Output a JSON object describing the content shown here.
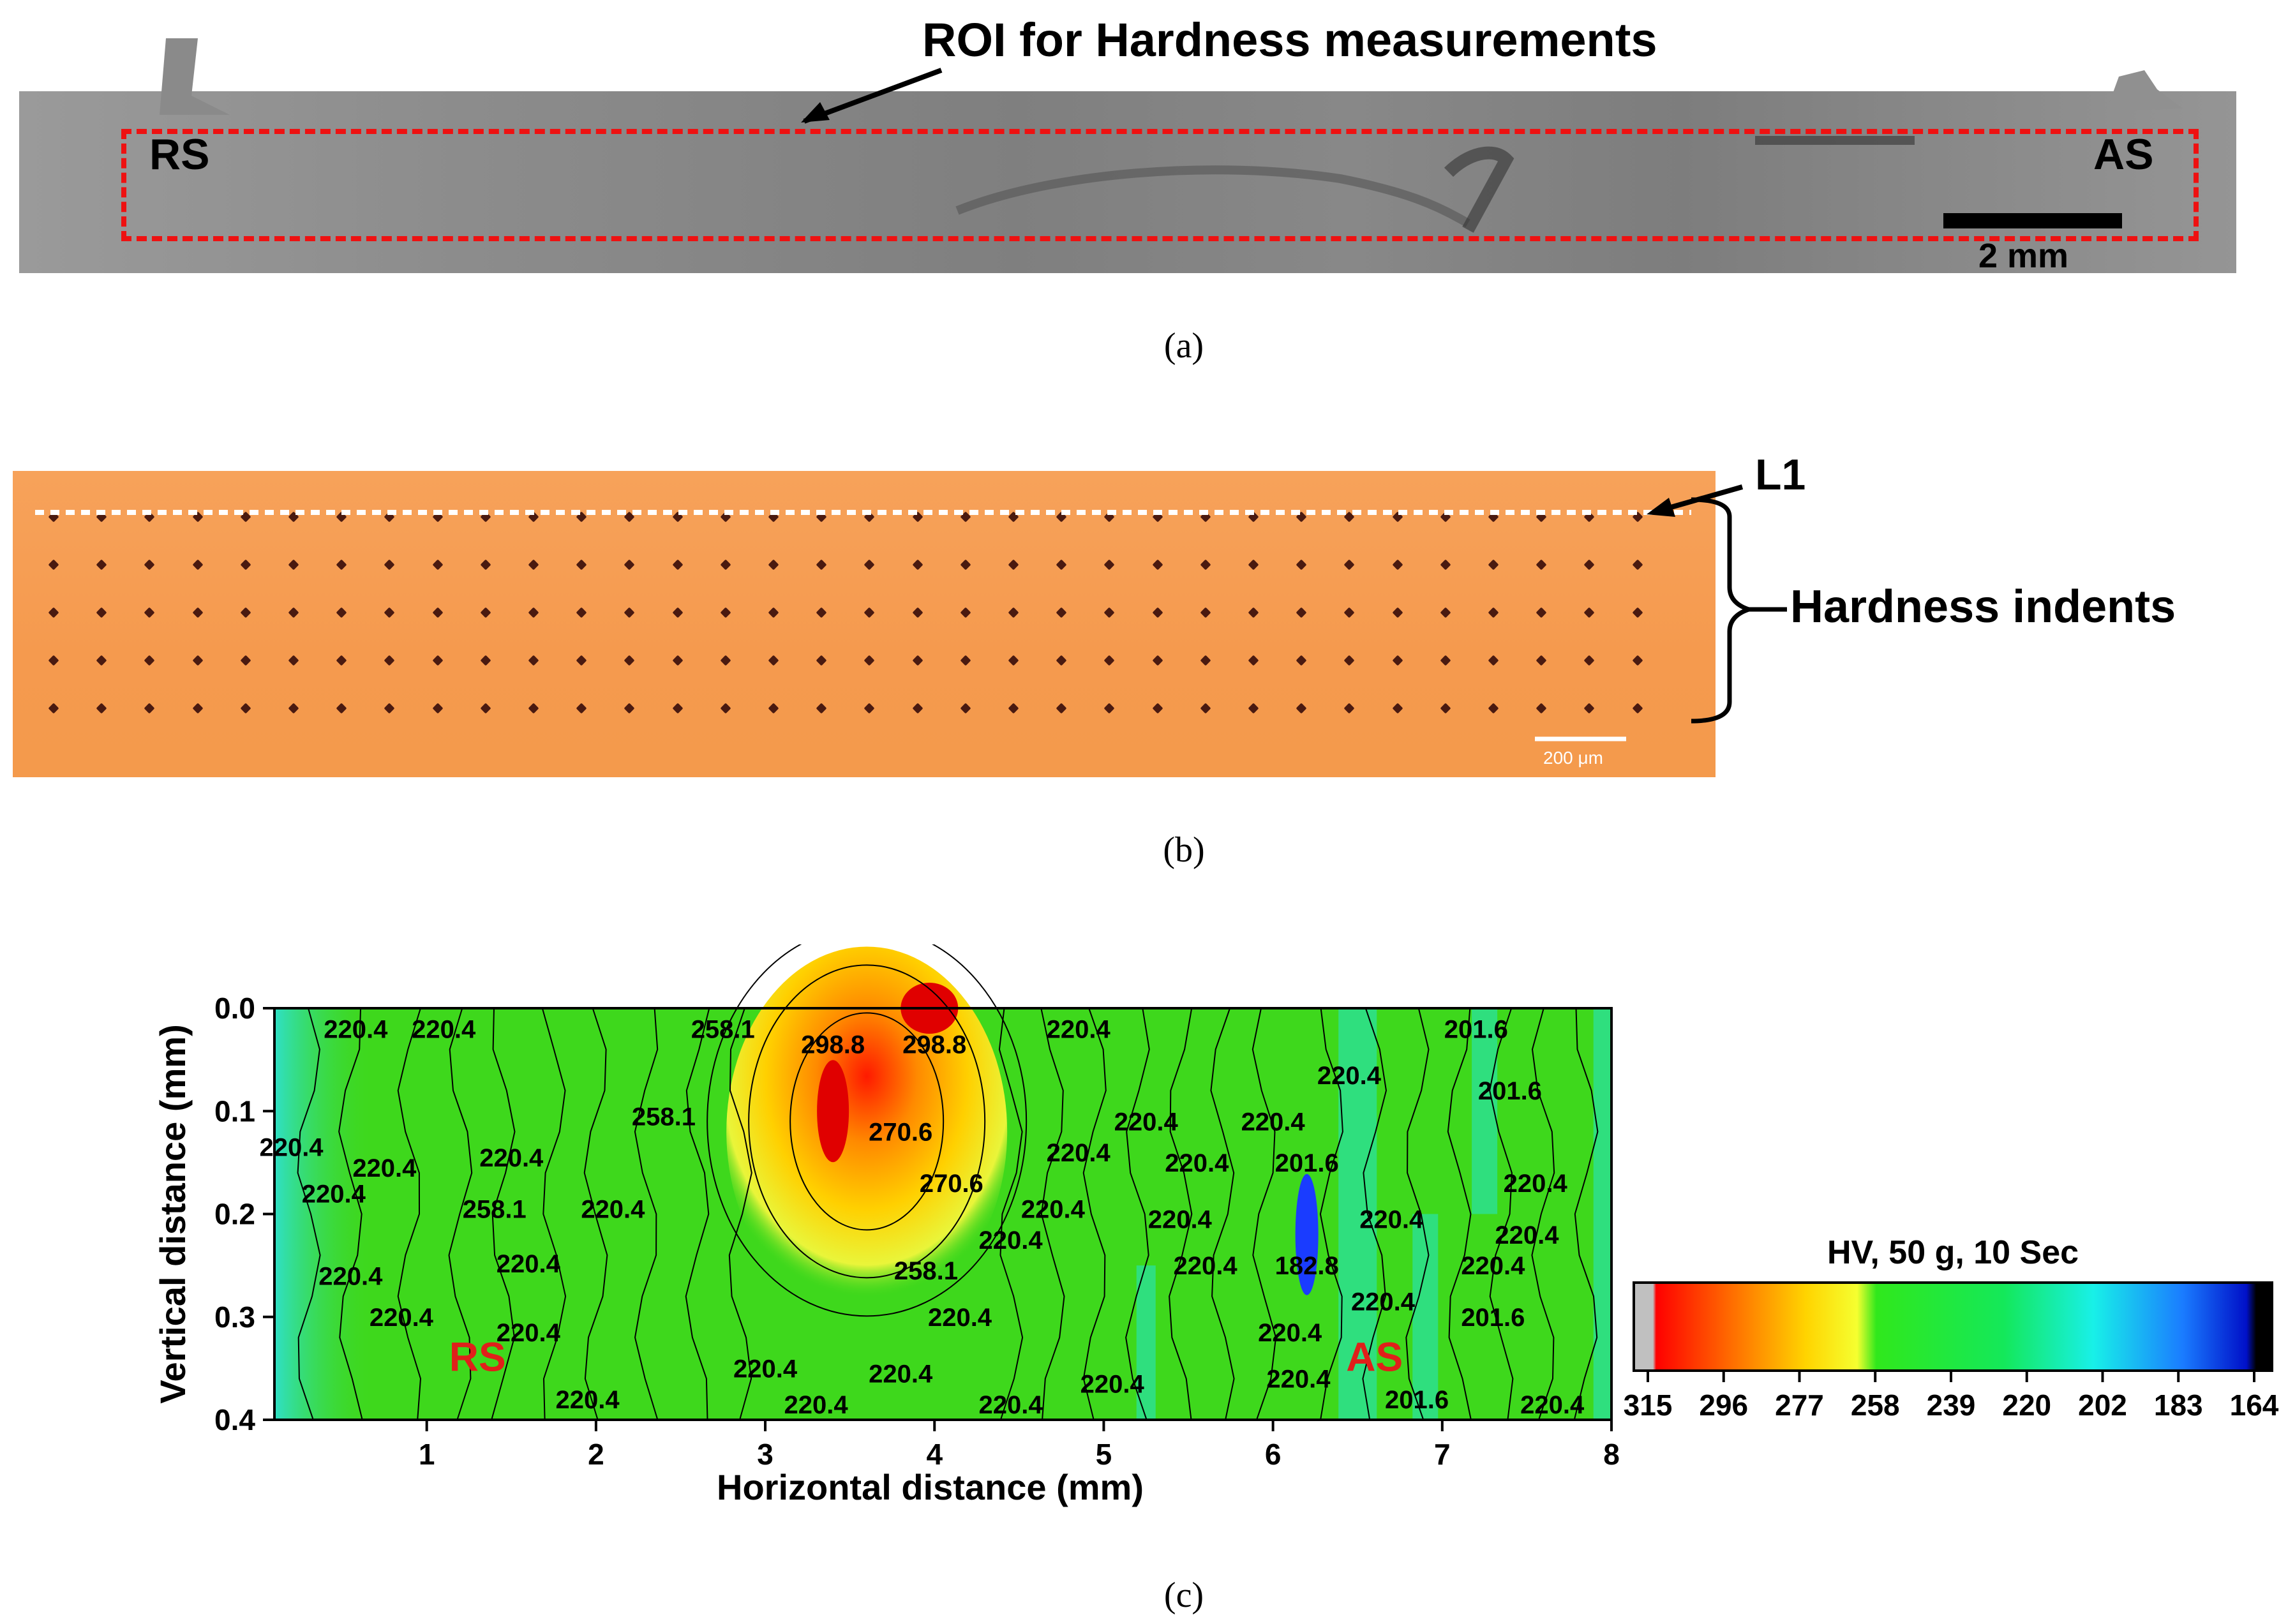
{
  "panel_a": {
    "caption": "(a)",
    "roi_label": "ROI for Hardness measurements",
    "left_label": "RS",
    "right_label": "AS",
    "scale_bar": "2 mm"
  },
  "panel_b": {
    "caption": "(b)",
    "line_label": "L1",
    "indent_label": "Hardness indents",
    "scale_bar": "200 μm",
    "indent_columns": 34,
    "indent_rows": 5
  },
  "panel_c": {
    "caption": "(c)",
    "side_labels": {
      "rs": "RS",
      "as": "AS"
    },
    "colors": {
      "label_red": "#e0201a",
      "base_green": "#3ed81c"
    }
  },
  "chart_data": {
    "type": "heatmap",
    "title": "",
    "xlabel": "Horizontal distance (mm)",
    "ylabel": "Vertical distance (mm)",
    "xlim": [
      0.1,
      8
    ],
    "ylim": [
      0.0,
      0.4
    ],
    "x_ticks": [
      1,
      2,
      3,
      4,
      5,
      6,
      7,
      8
    ],
    "y_ticks": [
      0.0,
      0.1,
      0.2,
      0.3,
      0.4
    ],
    "x_tick_labels": [
      "1",
      "2",
      "3",
      "4",
      "5",
      "6",
      "7",
      "8"
    ],
    "y_tick_labels": [
      "0.0",
      "0.1",
      "0.2",
      "0.3",
      "0.4"
    ],
    "colorbar": {
      "title": "HV, 50 g, 10 Sec",
      "ticks": [
        315,
        296,
        277,
        258,
        239,
        220,
        202,
        183,
        164
      ],
      "tick_labels": [
        "315",
        "296",
        "277",
        "258",
        "239",
        "220",
        "202",
        "183",
        "164"
      ],
      "colors": [
        "#c0c0c0",
        "#ff0000",
        "#ff6a00",
        "#ffd400",
        "#f5ff30",
        "#30e81c",
        "#14e85a",
        "#18f0e8",
        "#1a7cff",
        "#0010c8",
        "#000000"
      ]
    },
    "features": [
      {
        "name": "high-hardness-zone",
        "x": 3.6,
        "y": 0.12,
        "value": 298.8
      },
      {
        "name": "low-hardness-spot",
        "x": 6.2,
        "y": 0.22,
        "value": 182.8
      }
    ],
    "contour_labels": [
      {
        "text": "220.4",
        "x": 0.58,
        "y": 0.02
      },
      {
        "text": "220.4",
        "x": 1.1,
        "y": 0.02
      },
      {
        "text": "258.1",
        "x": 2.75,
        "y": 0.02
      },
      {
        "text": "298.8",
        "x": 3.4,
        "y": 0.035
      },
      {
        "text": "298.8",
        "x": 4.0,
        "y": 0.035
      },
      {
        "text": "220.4",
        "x": 4.85,
        "y": 0.02
      },
      {
        "text": "201.6",
        "x": 7.2,
        "y": 0.02
      },
      {
        "text": "220.4",
        "x": 6.45,
        "y": 0.065
      },
      {
        "text": "201.6",
        "x": 7.4,
        "y": 0.08
      },
      {
        "text": "258.1",
        "x": 2.4,
        "y": 0.105
      },
      {
        "text": "270.6",
        "x": 3.8,
        "y": 0.12
      },
      {
        "text": "220.4",
        "x": 0.2,
        "y": 0.135
      },
      {
        "text": "220.4",
        "x": 1.5,
        "y": 0.145
      },
      {
        "text": "220.4",
        "x": 0.75,
        "y": 0.155
      },
      {
        "text": "220.4",
        "x": 5.25,
        "y": 0.11
      },
      {
        "text": "220.4",
        "x": 6.0,
        "y": 0.11
      },
      {
        "text": "220.4",
        "x": 4.85,
        "y": 0.14
      },
      {
        "text": "220.4",
        "x": 5.55,
        "y": 0.15
      },
      {
        "text": "201.6",
        "x": 6.2,
        "y": 0.15
      },
      {
        "text": "270.6",
        "x": 4.1,
        "y": 0.17
      },
      {
        "text": "220.4",
        "x": 0.45,
        "y": 0.18
      },
      {
        "text": "220.4",
        "x": 7.55,
        "y": 0.17
      },
      {
        "text": "258.1",
        "x": 1.4,
        "y": 0.195
      },
      {
        "text": "220.4",
        "x": 2.1,
        "y": 0.195
      },
      {
        "text": "220.4",
        "x": 4.7,
        "y": 0.195
      },
      {
        "text": "220.4",
        "x": 5.45,
        "y": 0.205
      },
      {
        "text": "220.4",
        "x": 6.7,
        "y": 0.205
      },
      {
        "text": "220.4",
        "x": 4.45,
        "y": 0.225
      },
      {
        "text": "220.4",
        "x": 7.5,
        "y": 0.22
      },
      {
        "text": "220.4",
        "x": 1.6,
        "y": 0.248
      },
      {
        "text": "220.4",
        "x": 5.6,
        "y": 0.25
      },
      {
        "text": "182.8",
        "x": 6.2,
        "y": 0.25
      },
      {
        "text": "258.1",
        "x": 3.95,
        "y": 0.255
      },
      {
        "text": "220.4",
        "x": 0.55,
        "y": 0.26
      },
      {
        "text": "220.4",
        "x": 7.3,
        "y": 0.25
      },
      {
        "text": "220.4",
        "x": 6.65,
        "y": 0.285
      },
      {
        "text": "220.4",
        "x": 0.85,
        "y": 0.3
      },
      {
        "text": "220.4",
        "x": 4.15,
        "y": 0.3
      },
      {
        "text": "201.6",
        "x": 7.3,
        "y": 0.3
      },
      {
        "text": "220.4",
        "x": 1.6,
        "y": 0.315
      },
      {
        "text": "220.4",
        "x": 6.1,
        "y": 0.315
      },
      {
        "text": "220.4",
        "x": 3.0,
        "y": 0.35
      },
      {
        "text": "220.4",
        "x": 3.8,
        "y": 0.355
      },
      {
        "text": "220.4",
        "x": 5.05,
        "y": 0.365
      },
      {
        "text": "220.4",
        "x": 6.15,
        "y": 0.36
      },
      {
        "text": "220.4",
        "x": 1.95,
        "y": 0.38
      },
      {
        "text": "220.4",
        "x": 3.3,
        "y": 0.385
      },
      {
        "text": "220.4",
        "x": 4.45,
        "y": 0.385
      },
      {
        "text": "201.6",
        "x": 6.85,
        "y": 0.38
      },
      {
        "text": "220.4",
        "x": 7.65,
        "y": 0.385
      }
    ]
  }
}
